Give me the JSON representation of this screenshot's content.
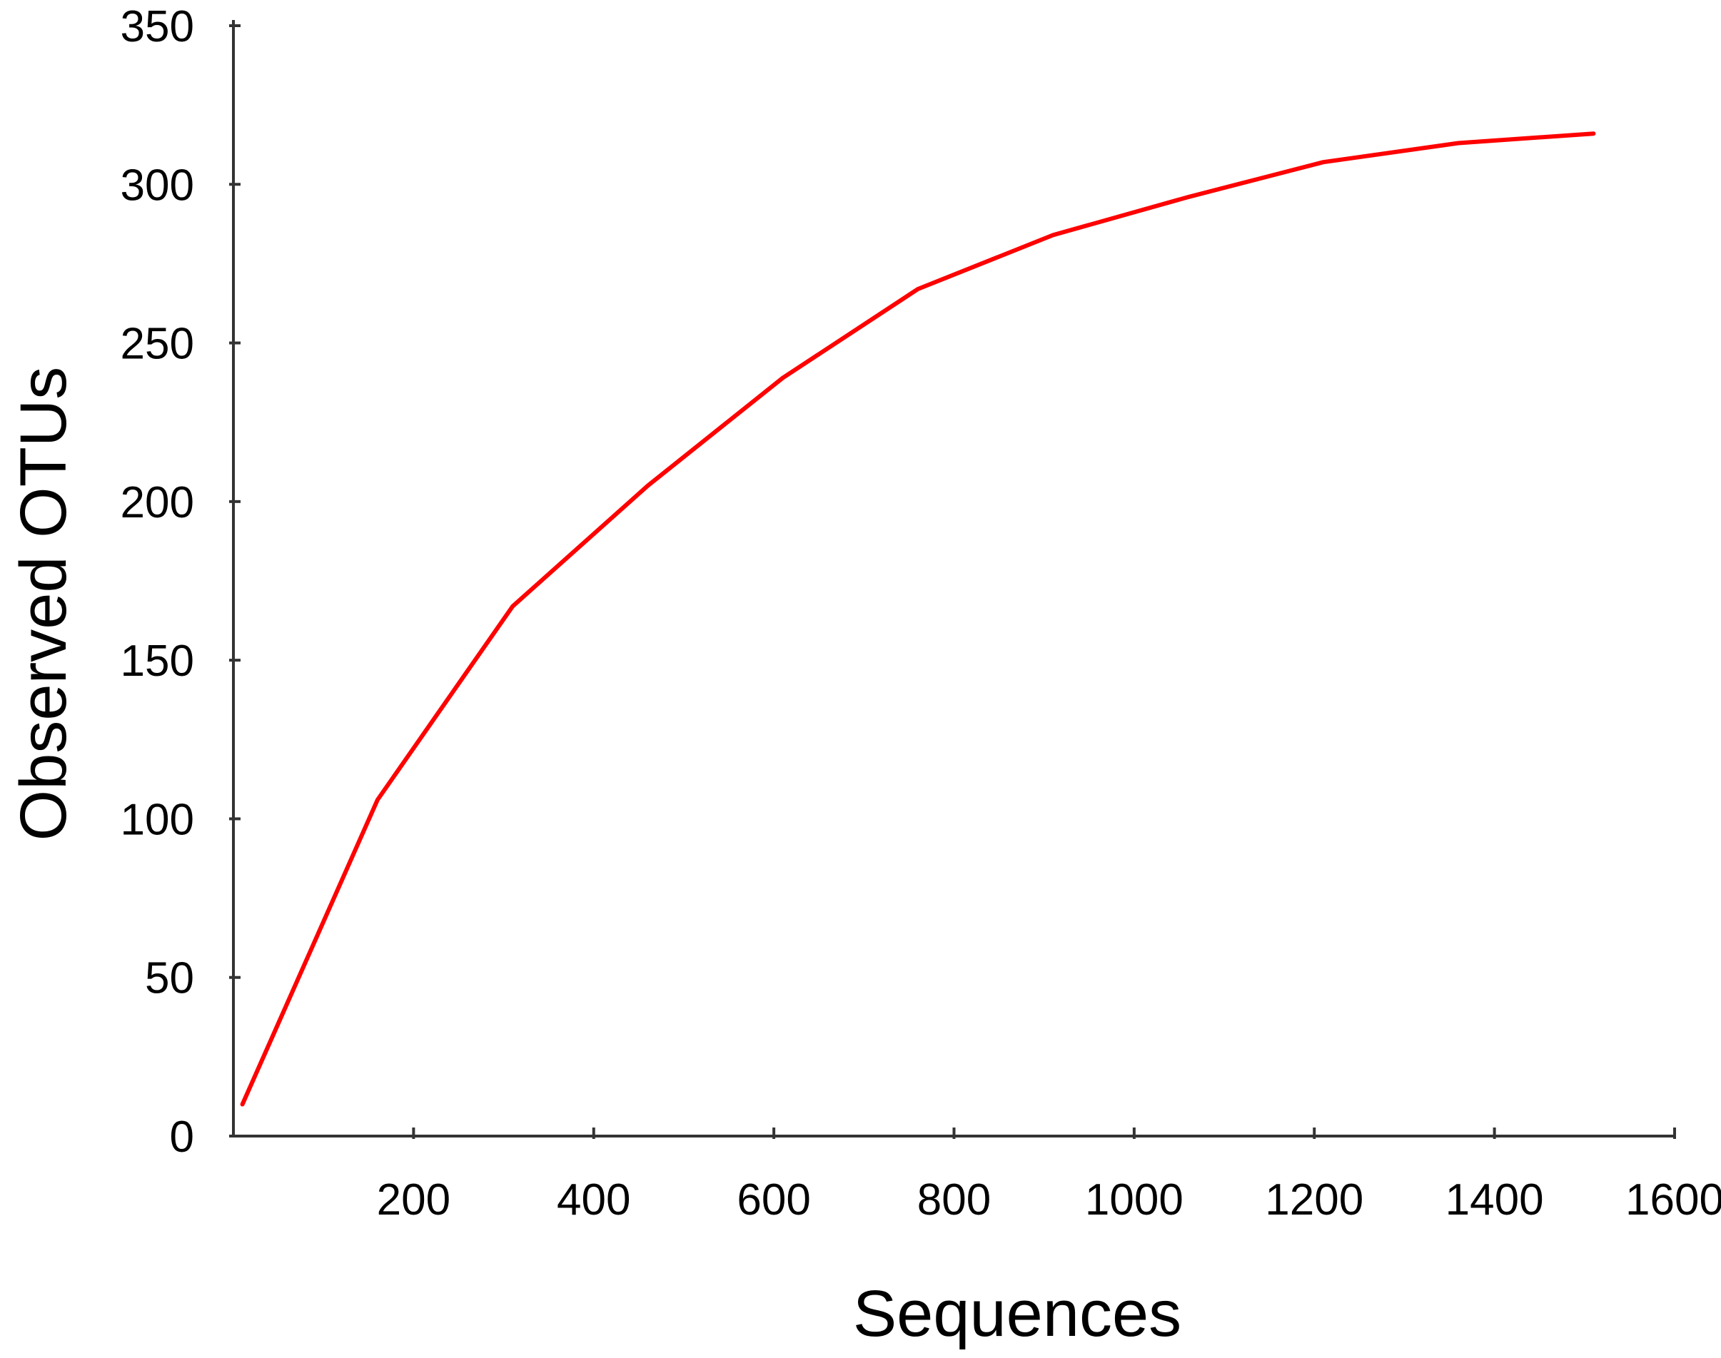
{
  "chart_data": {
    "type": "line",
    "title": "",
    "xlabel": "Sequences",
    "ylabel": "Observed OTUs",
    "xlim": [
      0,
      1600
    ],
    "ylim": [
      0,
      350
    ],
    "xticks": [
      200,
      400,
      600,
      800,
      1000,
      1200,
      1400,
      1600
    ],
    "yticks": [
      0,
      50,
      100,
      150,
      200,
      250,
      300,
      350
    ],
    "grid": false,
    "legend": "none",
    "series": [
      {
        "color": "#ff0000",
        "x": [
          10,
          160,
          310,
          460,
          610,
          760,
          910,
          1060,
          1210,
          1360,
          1510
        ],
        "y": [
          10,
          106,
          167,
          205,
          239,
          267,
          284,
          296,
          307,
          313,
          316
        ]
      }
    ]
  }
}
